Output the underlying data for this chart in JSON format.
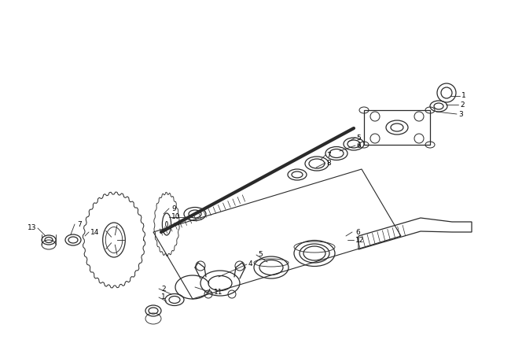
{
  "background_color": "#ffffff",
  "line_color": "#2a2a2a",
  "label_color": "#000000",
  "fig_width": 6.5,
  "fig_height": 4.5,
  "dpi": 100
}
